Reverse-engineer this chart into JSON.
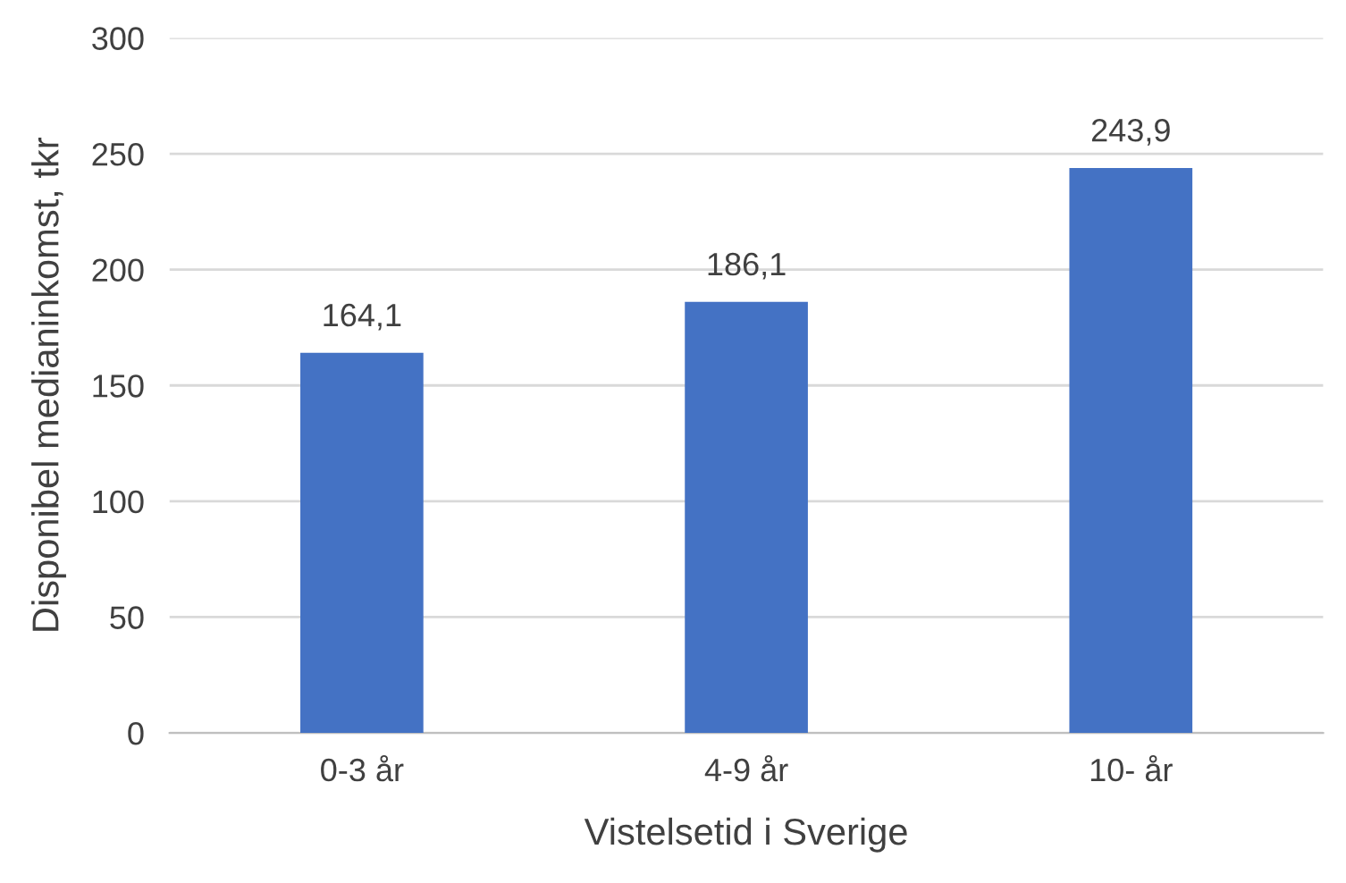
{
  "chart_data": {
    "type": "bar",
    "xlabel": "Vistelsetid i Sverige",
    "ylabel": "Disponibel medianinkomst, tkr",
    "categories": [
      "0-3 år",
      "4-9 år",
      "10- år"
    ],
    "values": [
      164.1,
      186.1,
      243.9
    ],
    "value_labels": [
      "164,1",
      "186,1",
      "243,9"
    ],
    "color": "#4472c4",
    "ylim": [
      0,
      300
    ],
    "yticks": [
      0,
      50,
      100,
      150,
      200,
      250,
      300
    ],
    "grid": "y",
    "legend": false
  }
}
